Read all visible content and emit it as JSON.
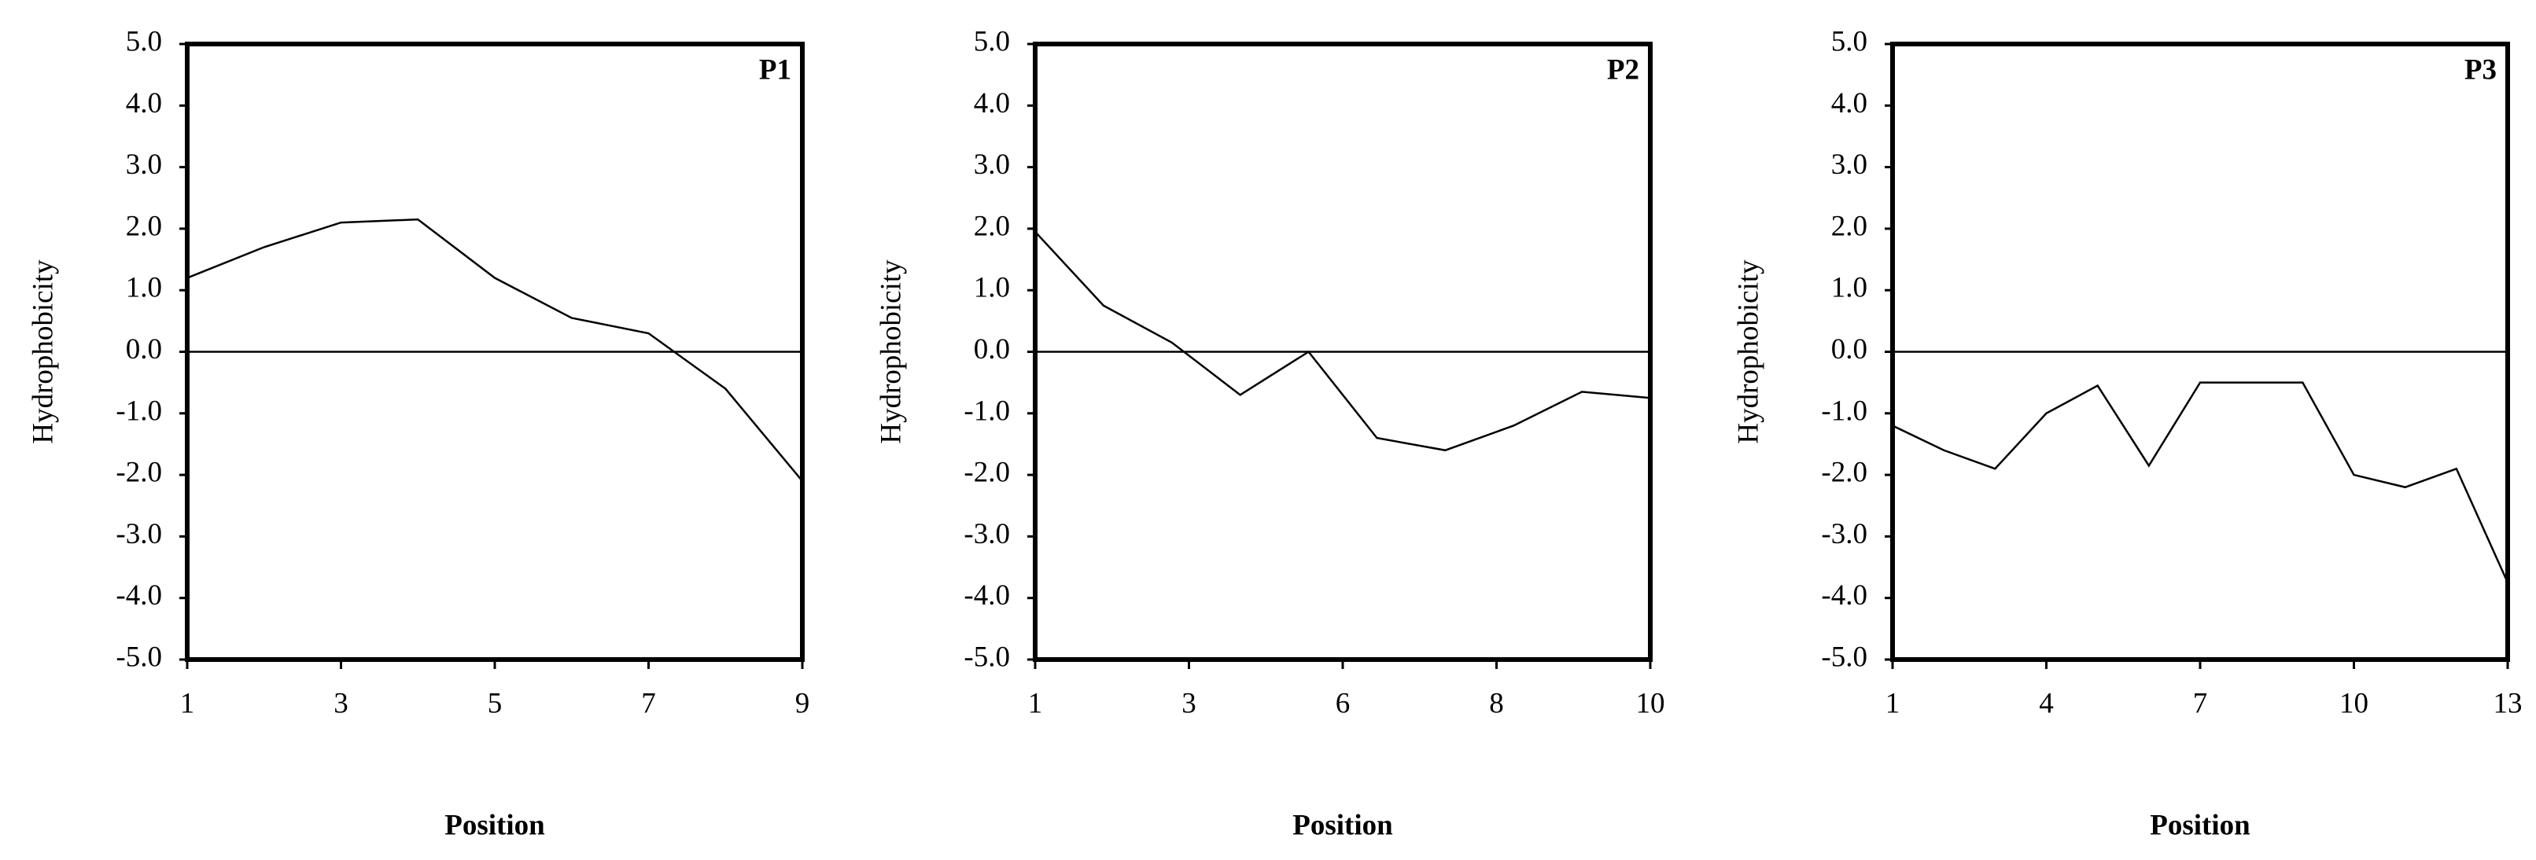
{
  "chart_data": [
    {
      "type": "line",
      "annotation": "P1",
      "x_label": "Position",
      "y_label": "Hydrophobicity",
      "color": "#000000",
      "zero_line": true,
      "x": [
        1,
        2,
        3,
        4,
        5,
        6,
        7,
        8,
        9
      ],
      "values": [
        1.2,
        1.7,
        2.1,
        2.15,
        1.2,
        0.55,
        0.3,
        -0.6,
        -2.1
      ],
      "xlim": [
        1,
        9
      ],
      "xticks": [
        1,
        3,
        5,
        7,
        9
      ],
      "ylim": [
        -5,
        5
      ],
      "yticks": [
        {
          "value": -5,
          "label": "-5.0"
        },
        {
          "value": -4,
          "label": "-4.0"
        },
        {
          "value": -3,
          "label": "-3.0"
        },
        {
          "value": -2,
          "label": "-2.0"
        },
        {
          "value": -1,
          "label": "-1.0"
        },
        {
          "value": 0,
          "label": "0.0"
        },
        {
          "value": 1,
          "label": "1.0"
        },
        {
          "value": 2,
          "label": "2.0"
        },
        {
          "value": 3,
          "label": "3.0"
        },
        {
          "value": 4,
          "label": "4.0"
        },
        {
          "value": 5,
          "label": "5.0"
        }
      ]
    },
    {
      "type": "line",
      "annotation": "P2",
      "x_label": "Position",
      "y_label": "Hydrophobicity",
      "color": "#000000",
      "zero_line": true,
      "x": [
        1,
        2,
        3,
        4,
        5,
        6,
        7,
        8,
        9,
        10
      ],
      "values": [
        1.95,
        0.75,
        0.15,
        -0.7,
        0.0,
        -1.4,
        -1.6,
        -1.2,
        -0.65,
        -0.75
      ],
      "xlim": [
        1,
        10
      ],
      "xticks": [
        1,
        {
          "value": 3.25,
          "label": "3"
        },
        {
          "value": 5.5,
          "label": "6"
        },
        {
          "value": 7.75,
          "label": "8"
        },
        10
      ],
      "ylim": [
        -5,
        5
      ],
      "yticks": [
        {
          "value": -5,
          "label": "-5.0"
        },
        {
          "value": -4,
          "label": "-4.0"
        },
        {
          "value": -3,
          "label": "-3.0"
        },
        {
          "value": -2,
          "label": "-2.0"
        },
        {
          "value": -1,
          "label": "-1.0"
        },
        {
          "value": 0,
          "label": "0.0"
        },
        {
          "value": 1,
          "label": "1.0"
        },
        {
          "value": 2,
          "label": "2.0"
        },
        {
          "value": 3,
          "label": "3.0"
        },
        {
          "value": 4,
          "label": "4.0"
        },
        {
          "value": 5,
          "label": "5.0"
        }
      ]
    },
    {
      "type": "line",
      "annotation": "P3",
      "x_label": "Position",
      "y_label": "Hydrophobicity",
      "color": "#000000",
      "zero_line": true,
      "x": [
        1,
        2,
        3,
        4,
        5,
        6,
        7,
        8,
        9,
        10,
        11,
        12,
        13
      ],
      "values": [
        -1.2,
        -1.6,
        -1.9,
        -1.0,
        -0.55,
        -1.85,
        -0.5,
        -0.5,
        -0.5,
        -2.0,
        -2.2,
        -1.9,
        -3.75
      ],
      "xlim": [
        1,
        13
      ],
      "xticks": [
        1,
        4,
        7,
        10,
        13
      ],
      "ylim": [
        -5,
        5
      ],
      "yticks": [
        {
          "value": -5,
          "label": "-5.0"
        },
        {
          "value": -4,
          "label": "-4.0"
        },
        {
          "value": -3,
          "label": "-3.0"
        },
        {
          "value": -2,
          "label": "-2.0"
        },
        {
          "value": -1,
          "label": "-1.0"
        },
        {
          "value": 0,
          "label": "0.0"
        },
        {
          "value": 1,
          "label": "1.0"
        },
        {
          "value": 2,
          "label": "2.0"
        },
        {
          "value": 3,
          "label": "3.0"
        },
        {
          "value": 4,
          "label": "4.0"
        },
        {
          "value": 5,
          "label": "5.0"
        }
      ]
    }
  ]
}
